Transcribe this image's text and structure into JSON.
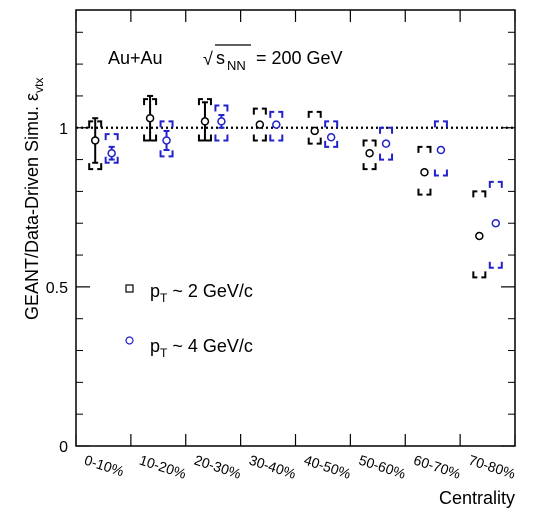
{
  "chart_data": {
    "type": "scatter",
    "annotation": {
      "collision": "Au+Au",
      "sqrt_symbol": "√",
      "sqrt_body": "s",
      "sqrt_sub": "NN",
      "energy": "= 200 GeV"
    },
    "ylabel": "GEANT/Data-Driven Simu. ε",
    "ylabel_sub": "vtx",
    "xlabel": "Centrality",
    "categories": [
      "0-10%",
      "10-20%",
      "20-30%",
      "30-40%",
      "40-50%",
      "50-60%",
      "60-70%",
      "70-80%"
    ],
    "ylim": [
      0,
      1.37
    ],
    "yticks": [
      {
        "value": 0,
        "label": "0"
      },
      {
        "value": 0.5,
        "label": "0.5"
      },
      {
        "value": 1,
        "label": "1"
      }
    ],
    "reference_line": 1.0,
    "series": [
      {
        "name": "p_T ~ 2 GeV/c",
        "legend_p": "p",
        "legend_sub": "T",
        "legend_rest": " ~ 2 GeV/c",
        "color": "#000000",
        "offset": -0.15,
        "values": [
          0.96,
          1.03,
          1.02,
          1.01,
          0.99,
          0.92,
          0.86,
          0.66
        ],
        "stat_err": [
          0.07,
          0.07,
          0.06,
          0.0,
          0.0,
          0.0,
          0.0,
          0.0
        ],
        "sys_low": [
          0.87,
          0.96,
          0.96,
          0.96,
          0.95,
          0.87,
          0.79,
          0.53
        ],
        "sys_high": [
          1.02,
          1.09,
          1.09,
          1.06,
          1.05,
          0.96,
          0.94,
          0.8
        ]
      },
      {
        "name": "p_T ~ 4 GeV/c",
        "legend_p": "p",
        "legend_sub": "T",
        "legend_rest": " ~ 4 GeV/c",
        "color": "#2222cc",
        "offset": 0.15,
        "values": [
          0.92,
          0.96,
          1.02,
          1.01,
          0.97,
          0.95,
          0.93,
          0.7
        ],
        "stat_err": [
          0.02,
          0.03,
          0.02,
          0.0,
          0.0,
          0.0,
          0.0,
          0.0
        ],
        "sys_low": [
          0.89,
          0.91,
          0.96,
          0.96,
          0.94,
          0.9,
          0.85,
          0.56
        ],
        "sys_high": [
          0.98,
          1.02,
          1.07,
          1.05,
          1.02,
          1.0,
          1.02,
          0.83
        ]
      }
    ]
  }
}
